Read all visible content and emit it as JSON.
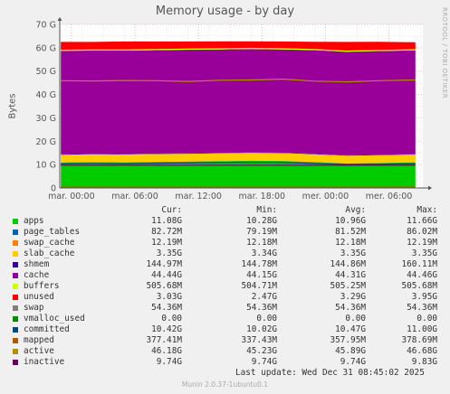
{
  "title": "Memory usage - by day",
  "side_text": "RRDTOOL / TOBI OETIKER",
  "footer": {
    "last_update": "Last update: Wed Dec 31 08:45:02 2025",
    "munin": "Munin 2.0.37-1ubuntu0.1"
  },
  "legend_headers": {
    "cur": "Cur:",
    "min": "Min:",
    "avg": "Avg:",
    "max": "Max:"
  },
  "legend": [
    {
      "name": "apps",
      "color": "#00cc00",
      "cur": "11.08G",
      "min": "10.28G",
      "avg": "10.96G",
      "max": "11.66G"
    },
    {
      "name": "page_tables",
      "color": "#0066b3",
      "cur": "82.72M",
      "min": "79.19M",
      "avg": "81.52M",
      "max": "86.02M"
    },
    {
      "name": "swap_cache",
      "color": "#ff8000",
      "cur": "12.19M",
      "min": "12.18M",
      "avg": "12.18M",
      "max": "12.19M"
    },
    {
      "name": "slab_cache",
      "color": "#ffcc00",
      "cur": "3.35G",
      "min": "3.34G",
      "avg": "3.35G",
      "max": "3.35G"
    },
    {
      "name": "shmem",
      "color": "#330099",
      "cur": "144.97M",
      "min": "144.78M",
      "avg": "144.86M",
      "max": "160.11M"
    },
    {
      "name": "cache",
      "color": "#990099",
      "cur": "44.44G",
      "min": "44.15G",
      "avg": "44.31G",
      "max": "44.46G"
    },
    {
      "name": "buffers",
      "color": "#ccff00",
      "cur": "505.68M",
      "min": "504.71M",
      "avg": "505.25M",
      "max": "505.68M"
    },
    {
      "name": "unused",
      "color": "#ff0000",
      "cur": "3.03G",
      "min": "2.47G",
      "avg": "3.29G",
      "max": "3.95G"
    },
    {
      "name": "swap",
      "color": "#808080",
      "cur": "54.36M",
      "min": "54.36M",
      "avg": "54.36M",
      "max": "54.36M"
    },
    {
      "name": "vmalloc_used",
      "color": "#008f00",
      "cur": "0.00",
      "min": "0.00",
      "avg": "0.00",
      "max": "0.00"
    },
    {
      "name": "committed",
      "color": "#00487d",
      "cur": "10.42G",
      "min": "10.02G",
      "avg": "10.47G",
      "max": "11.00G"
    },
    {
      "name": "mapped",
      "color": "#b35a00",
      "cur": "377.41M",
      "min": "337.43M",
      "avg": "357.95M",
      "max": "378.69M"
    },
    {
      "name": "active",
      "color": "#b38f00",
      "cur": "46.18G",
      "min": "45.23G",
      "avg": "45.89G",
      "max": "46.68G"
    },
    {
      "name": "inactive",
      "color": "#6b006b",
      "cur": "9.74G",
      "min": "9.74G",
      "avg": "9.74G",
      "max": "9.83G"
    }
  ],
  "chart_data": {
    "type": "area",
    "title": "Memory usage - by day",
    "ylabel": "Bytes",
    "ylim": [
      0,
      70
    ],
    "y_unit": "G",
    "y_ticks": [
      "0",
      "10 G",
      "20 G",
      "30 G",
      "40 G",
      "50 G",
      "60 G",
      "70 G"
    ],
    "y_tick_values": [
      0,
      10,
      20,
      30,
      40,
      50,
      60,
      70
    ],
    "x_ticks": [
      "mar. 00:00",
      "mar. 06:00",
      "mar. 12:00",
      "mar. 18:00",
      "mer. 00:00",
      "mer. 06:00"
    ],
    "x_tick_hours": [
      0,
      6,
      12,
      18,
      24,
      30
    ],
    "x_range_hours": [
      -1.1,
      33.2
    ],
    "grid": true,
    "stacked_series": [
      {
        "name": "apps",
        "color": "#00cc00",
        "values": [
          10.8,
          11.0,
          10.9,
          11.1,
          11.2,
          11.4,
          11.6,
          11.5,
          11.0,
          10.4,
          10.6,
          10.9
        ]
      },
      {
        "name": "page_tables",
        "color": "#0066b3",
        "values": [
          0.08,
          0.08,
          0.08,
          0.08,
          0.08,
          0.08,
          0.08,
          0.08,
          0.08,
          0.08,
          0.08,
          0.08
        ]
      },
      {
        "name": "swap_cache",
        "color": "#ff8000",
        "values": [
          0.01,
          0.01,
          0.01,
          0.01,
          0.01,
          0.01,
          0.01,
          0.01,
          0.01,
          0.01,
          0.01,
          0.01
        ]
      },
      {
        "name": "slab_cache",
        "color": "#ffcc00",
        "values": [
          3.35,
          3.35,
          3.35,
          3.35,
          3.35,
          3.35,
          3.35,
          3.35,
          3.35,
          3.35,
          3.35,
          3.35
        ]
      },
      {
        "name": "shmem",
        "color": "#330099",
        "values": [
          0.14,
          0.14,
          0.14,
          0.14,
          0.14,
          0.14,
          0.14,
          0.14,
          0.14,
          0.14,
          0.14,
          0.14
        ]
      },
      {
        "name": "cache",
        "color": "#990099",
        "values": [
          44.3,
          44.2,
          44.3,
          44.3,
          44.4,
          44.3,
          44.3,
          44.2,
          44.4,
          44.3,
          44.4,
          44.4
        ]
      },
      {
        "name": "buffers",
        "color": "#ccff00",
        "values": [
          0.5,
          0.5,
          0.5,
          0.5,
          0.5,
          0.5,
          0.5,
          0.5,
          0.5,
          0.5,
          0.5,
          0.5
        ]
      },
      {
        "name": "unused",
        "color": "#ff0000",
        "values": [
          3.3,
          3.2,
          3.4,
          3.2,
          3.0,
          3.0,
          2.8,
          2.9,
          3.1,
          3.7,
          3.5,
          3.0
        ]
      }
    ],
    "lines": [
      {
        "name": "committed",
        "color": "#00487d",
        "values": [
          10.4,
          10.5,
          10.4,
          10.6,
          10.7,
          10.9,
          11.0,
          10.9,
          10.5,
          10.1,
          10.2,
          10.4
        ]
      },
      {
        "name": "mapped",
        "color": "#b35a00",
        "values": [
          0.36,
          0.36,
          0.36,
          0.36,
          0.36,
          0.36,
          0.36,
          0.36,
          0.36,
          0.36,
          0.36,
          0.38
        ]
      },
      {
        "name": "active",
        "color": "#b38f00",
        "values": [
          45.9,
          45.8,
          46.0,
          45.9,
          45.6,
          46.1,
          46.2,
          46.6,
          45.7,
          45.4,
          45.9,
          46.2
        ]
      },
      {
        "name": "inactive",
        "color": "#6b006b",
        "values": [
          9.74,
          9.74,
          9.74,
          9.74,
          9.74,
          9.74,
          9.74,
          9.74,
          9.74,
          9.74,
          9.74,
          9.74
        ]
      }
    ],
    "sample_hours": [
      -1,
      2,
      5,
      8,
      11,
      14,
      17,
      20,
      23,
      26,
      29,
      32.5
    ]
  }
}
